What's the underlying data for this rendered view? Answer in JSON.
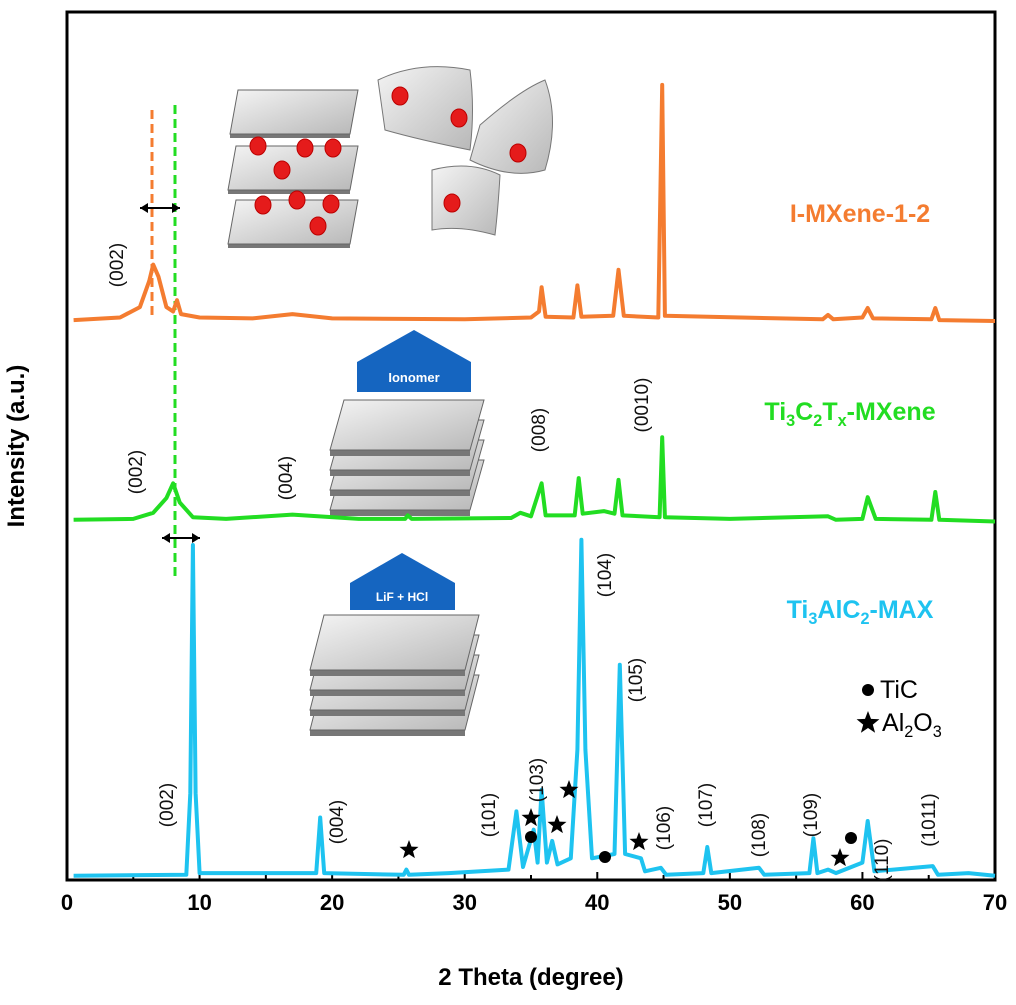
{
  "chart_data": {
    "type": "line",
    "xlabel": "2 Theta (degree)",
    "ylabel": "Intensity (a.u.)",
    "xlim": [
      0,
      70
    ],
    "xticks": [
      0,
      10,
      20,
      30,
      40,
      50,
      60,
      70
    ],
    "ylim": [
      0,
      100
    ],
    "series": [
      {
        "name": "I-MXene-1-2",
        "color": "#f47c30",
        "x": [
          0.5,
          4,
          5.5,
          6.2,
          6.5,
          6.9,
          7.5,
          8,
          8.3,
          8.6,
          10,
          14,
          17,
          20,
          30,
          35,
          35.6,
          35.8,
          36.1,
          38.2,
          38.5,
          38.8,
          41.2,
          41.6,
          42,
          44.6,
          44.9,
          45.1,
          57,
          57.4,
          57.8,
          60,
          60.4,
          60.8,
          65.2,
          65.5,
          65.8,
          70
        ],
        "values": [
          64.5,
          64.8,
          66,
          69,
          70.9,
          69.5,
          66,
          65.5,
          66.8,
          65.2,
          64.8,
          64.7,
          65.2,
          64.7,
          64.6,
          64.8,
          65.5,
          68.3,
          64.9,
          64.8,
          68.5,
          64.9,
          65,
          70.3,
          65,
          64.8,
          91.6,
          65,
          64.6,
          65.1,
          64.6,
          64.8,
          65.9,
          64.7,
          64.6,
          65.9,
          64.5,
          64.4
        ]
      },
      {
        "name": "Ti3C2Tx-MXene",
        "color": "#22dd22",
        "x": [
          0.5,
          5,
          6.5,
          7.5,
          8,
          8.5,
          9.5,
          12,
          17,
          22,
          25.5,
          25.7,
          26,
          33.5,
          34.2,
          35,
          35.8,
          36.1,
          38.3,
          38.6,
          38.9,
          40.5,
          41.3,
          41.6,
          41.9,
          44.7,
          44.9,
          45.1,
          50,
          57.4,
          58,
          60,
          60.4,
          61,
          65.2,
          65.5,
          65.8,
          70
        ],
        "values": [
          41.5,
          41.6,
          42.3,
          44,
          45.7,
          43.5,
          41.8,
          41.6,
          42.1,
          41.6,
          41.6,
          42,
          41.6,
          41.7,
          42.3,
          41.9,
          45.7,
          42,
          42,
          46.3,
          42.2,
          42.5,
          42.2,
          46.1,
          42,
          41.8,
          51,
          41.8,
          41.6,
          41.9,
          41.5,
          41.6,
          44.1,
          41.6,
          41.5,
          44.7,
          41.5,
          41.3
        ]
      },
      {
        "name": "Ti3AlC2-MAX",
        "color": "#1ec3f0",
        "x": [
          0.5,
          9,
          9.3,
          9.5,
          9.7,
          10,
          18.8,
          19.1,
          19.4,
          25.4,
          25.6,
          25.8,
          28.8,
          33.3,
          33.9,
          34.4,
          35.2,
          35.5,
          35.8,
          36.2,
          36.6,
          37,
          38,
          38.5,
          38.8,
          39.1,
          39.6,
          41.3,
          41.7,
          42.1,
          43.3,
          43.6,
          44.8,
          45.2,
          48,
          48.3,
          48.6,
          52.2,
          52.6,
          56,
          56.3,
          56.6,
          57.4,
          58,
          60,
          60.4,
          60.9,
          65.3,
          65.7,
          68,
          70
        ],
        "values": [
          0.5,
          0.6,
          10,
          38.6,
          10,
          0.8,
          0.8,
          7.2,
          0.8,
          0.6,
          1.2,
          0.6,
          0.8,
          1.2,
          7.9,
          1.5,
          5.8,
          2,
          10.4,
          2,
          4.5,
          1.8,
          2.5,
          15,
          39.2,
          15,
          2.5,
          3,
          24.8,
          3,
          2.5,
          1,
          1.4,
          0.6,
          0.8,
          3.8,
          0.8,
          1.4,
          0.6,
          0.8,
          4.8,
          0.8,
          1.2,
          0.8,
          2,
          6.8,
          1,
          1.6,
          0.6,
          0.8,
          0.5
        ]
      }
    ],
    "peak_labels": [
      [
        "(002)"
      ],
      [
        "(002)",
        "(004)",
        "(008)",
        "(0010)"
      ],
      [
        "(002)",
        "(004)",
        "(101)",
        "(103)",
        "(104)",
        "(105)",
        "(106)",
        "(107)",
        "(108)",
        "(109)",
        "(110)",
        "(1011)"
      ]
    ],
    "phase_legend": [
      "TiC",
      "Al2O3"
    ],
    "illustration_labels": [
      "Ionomer",
      "LiF + HCl"
    ]
  }
}
